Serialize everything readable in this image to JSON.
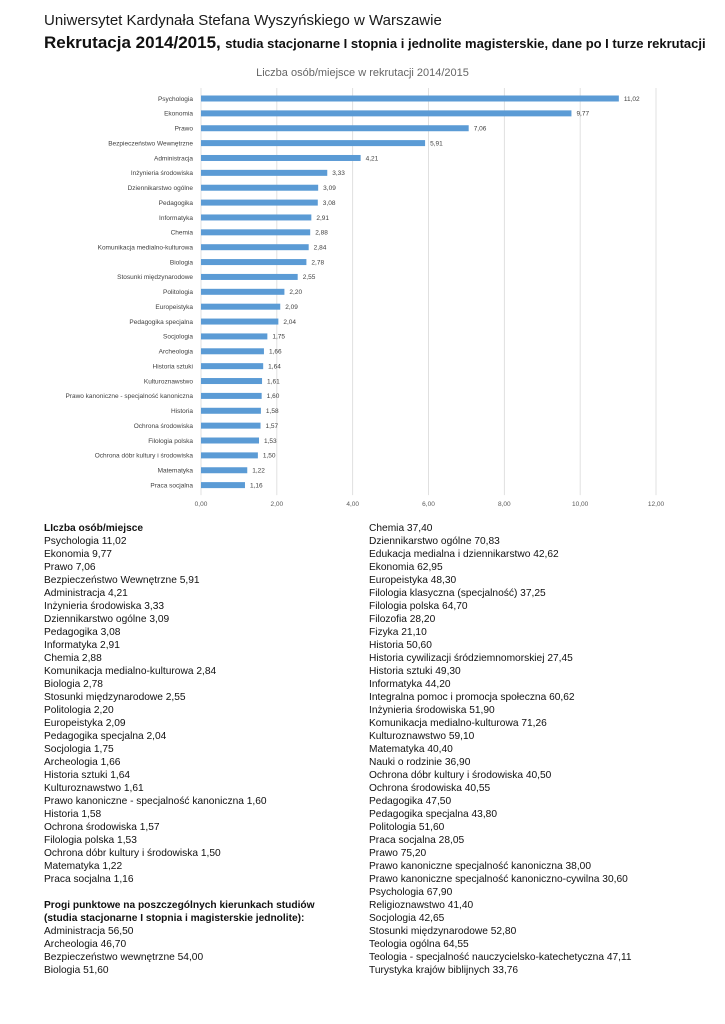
{
  "header": {
    "university": "Uniwersytet Kardynała Stefana Wyszyńskiego w Warszawie",
    "title_main": "Rekrutacja 2014/2015,",
    "title_rest": "studia stacjonarne I stopnia i jednolite magisterskie, dane po I turze rekrutacji"
  },
  "chart_data": {
    "type": "bar",
    "orientation": "horizontal",
    "title": "Liczba osób/miejsce w rekrutacji 2014/2015",
    "xlim": [
      0,
      12
    ],
    "xticks": [
      "0,00",
      "2,00",
      "4,00",
      "6,00",
      "8,00",
      "10,00",
      "12,00"
    ],
    "bar_color": "#5b9bd5",
    "categories": [
      "Psychologia",
      "Ekonomia",
      "Prawo",
      "Bezpieczeństwo Wewnętrzne",
      "Administracja",
      "Inżynieria środowiska",
      "Dziennikarstwo ogólne",
      "Pedagogika",
      "Informatyka",
      "Chemia",
      "Komunikacja medialno-kulturowa",
      "Biologia",
      "Stosunki międzynarodowe",
      "Politologia",
      "Europeistyka",
      "Pedagogika specjalna",
      "Socjologia",
      "Archeologia",
      "Historia sztuki",
      "Kulturoznawstwo",
      "Prawo kanoniczne - specjalność kanoniczna",
      "Historia",
      "Ochrona środowiska",
      "Filologia polska",
      "Ochrona dóbr kultury i środowiska",
      "Matematyka",
      "Praca socjalna"
    ],
    "values": [
      11.02,
      9.77,
      7.06,
      5.91,
      4.21,
      3.33,
      3.09,
      3.08,
      2.91,
      2.88,
      2.84,
      2.78,
      2.55,
      2.2,
      2.09,
      2.04,
      1.75,
      1.66,
      1.64,
      1.61,
      1.6,
      1.58,
      1.57,
      1.53,
      1.5,
      1.22,
      1.16
    ],
    "value_labels": [
      "11,02",
      "9,77",
      "7,06",
      "5,91",
      "4,21",
      "3,33",
      "3,09",
      "3,08",
      "2,91",
      "2,88",
      "2,84",
      "2,78",
      "2,55",
      "2,20",
      "2,09",
      "2,04",
      "1,75",
      "1,66",
      "1,64",
      "1,61",
      "1,60",
      "1,58",
      "1,57",
      "1,53",
      "1,50",
      "1,22",
      "1,16"
    ]
  },
  "left_column": {
    "heading": "LIczba osób/miejsce",
    "items": [
      "Psychologia 11,02",
      "Ekonomia 9,77",
      "Prawo 7,06",
      "Bezpieczeństwo Wewnętrzne 5,91",
      "Administracja 4,21",
      "Inżynieria środowiska 3,33",
      "Dziennikarstwo ogólne 3,09",
      "Pedagogika 3,08",
      "Informatyka 2,91",
      "Chemia 2,88",
      "Komunikacja medialno-kulturowa 2,84",
      "Biologia 2,78",
      "Stosunki międzynarodowe 2,55",
      "Politologia 2,20",
      "Europeistyka 2,09",
      "Pedagogika specjalna 2,04",
      "Socjologia 1,75",
      "Archeologia 1,66",
      "Historia sztuki 1,64",
      "Kulturoznawstwo 1,61",
      "Prawo kanoniczne - specjalność kanoniczna 1,60",
      "Historia 1,58",
      "Ochrona środowiska 1,57",
      "Filologia polska 1,53",
      "Ochrona dóbr kultury i środowiska 1,50",
      "Matematyka 1,22",
      "Praca socjalna 1,16"
    ],
    "thresholds_heading_1": "Progi punktowe na poszczególnych kierunkach studiów",
    "thresholds_heading_2": "(studia stacjonarne I stopnia i magisterskie jednolite):",
    "thresholds": [
      "Administracja 56,50",
      "Archeologia 46,70",
      "Bezpieczeństwo wewnętrzne 54,00",
      "Biologia 51,60"
    ]
  },
  "right_column": {
    "items": [
      "Chemia 37,40",
      "Dziennikarstwo ogólne 70,83",
      "Edukacja medialna i dziennikarstwo 42,62",
      "Ekonomia 62,95",
      "Europeistyka 48,30",
      "Filologia klasyczna (specjalność) 37,25",
      "Filologia polska 64,70",
      "Filozofia 28,20",
      "Fizyka 21,10",
      "Historia 50,60",
      "Historia cywilizacji śródziemnomorskiej 27,45",
      "Historia sztuki 49,30",
      "Informatyka 44,20",
      "Integralna pomoc i promocja społeczna 60,62",
      "Inżynieria środowiska 51,90",
      "Komunikacja medialno-kulturowa 71,26",
      "Kulturoznawstwo 59,10",
      "Matematyka 40,40",
      "Nauki o rodzinie 36,90",
      "Ochrona dóbr kultury i środowiska 40,50",
      "Ochrona środowiska 40,55",
      "Pedagogika 47,50",
      "Pedagogika specjalna 43,80",
      "Politologia 51,60",
      "Praca socjalna 28,05",
      "Prawo 75,20",
      "Prawo kanoniczne specjalność kanoniczna 38,00",
      "Prawo kanoniczne specjalność kanoniczno-cywilna 30,60",
      "Psychologia 67,90",
      "Religioznawstwo 41,40",
      "Socjologia 42,65",
      "Stosunki międzynarodowe 52,80",
      "Teologia ogólna 64,55",
      "Teologia - specjalność nauczycielsko-katechetyczna 47,11",
      "Turystyka krajów biblijnych 33,76"
    ]
  }
}
